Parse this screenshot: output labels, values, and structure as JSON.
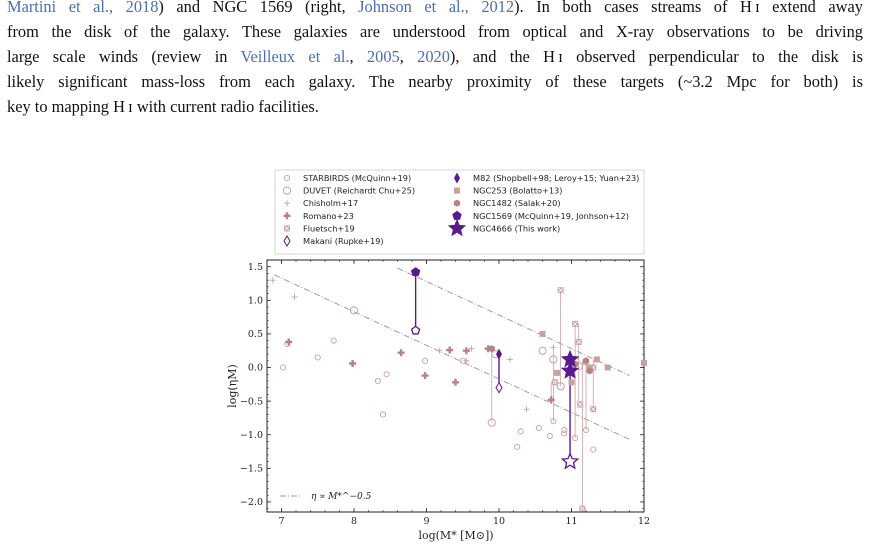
{
  "paragraph": {
    "line1": [
      {
        "t": "Martini et al., 2018",
        "cite": true
      },
      {
        "t": ") and NGC 1569 (right, ",
        "cite": false
      },
      {
        "t": "Johnson et al., 2012",
        "cite": true
      },
      {
        "t": "). In both cases streams of H ɪ extend away",
        "cite": false
      }
    ],
    "line2": [
      {
        "t": "from the disk of the galaxy. These galaxies are understood from optical and X-ray observations to be driving",
        "cite": false
      }
    ],
    "line3": [
      {
        "t": "large scale winds (review in ",
        "cite": false
      },
      {
        "t": "Veilleux et al.",
        "cite": true
      },
      {
        "t": ", ",
        "cite": false
      },
      {
        "t": "2005",
        "cite": true
      },
      {
        "t": ", ",
        "cite": false
      },
      {
        "t": "2020",
        "cite": true
      },
      {
        "t": "), and the H ɪ observed perpendicular to the disk is",
        "cite": false
      }
    ],
    "line4": [
      {
        "t": "likely significant mass-loss from each galaxy. The nearby proximity of these targets (~3.2 Mpc for both) is",
        "cite": false
      }
    ],
    "line5": [
      {
        "t": "key to mapping H ɪ with current radio facilities.",
        "cite": false
      }
    ]
  },
  "chart_data": {
    "type": "scatter",
    "xlabel": "log(M* [M⊙])",
    "ylabel": "log(ηM)",
    "xlim": [
      6.8,
      12.0
    ],
    "ylim": [
      -2.15,
      1.6
    ],
    "xticks": [
      7,
      8,
      9,
      10,
      11,
      12
    ],
    "yticks": [
      -2.0,
      -1.5,
      -1.0,
      -0.5,
      0.0,
      0.5,
      1.0,
      1.5
    ],
    "ytick_labels": [
      "−2.0",
      "−1.5",
      "−1.0",
      "−0.5",
      "0.0",
      "0.5",
      "1.0",
      "1.5"
    ],
    "grid": false,
    "legend_placement": "top, outside plot",
    "colors": {
      "literature": "#c9a0a0",
      "literature_dark": "#b58383",
      "highlight": "#5b1a8c",
      "line": "#999999"
    },
    "legend": [
      {
        "label": "STARBIRDS (McQuinn+19)",
        "marker": "circle-open-small"
      },
      {
        "label": "DUVET (Reichardt Chu+25)",
        "marker": "circle-open"
      },
      {
        "label": "Chisholm+17",
        "marker": "plus"
      },
      {
        "label": "Romano+23",
        "marker": "plus-filled"
      },
      {
        "label": "Fluetsch+19",
        "marker": "x-square"
      },
      {
        "label": "Makani (Rupke+19)",
        "marker": "diamond-open"
      },
      {
        "label": "M82 (Shopbell+98; Leroy+15; Yuan+23)",
        "marker": "thin-diamond"
      },
      {
        "label": "NGC253 (Bolatto+13)",
        "marker": "square"
      },
      {
        "label": "NGC1482 (Salak+20)",
        "marker": "hexagon"
      },
      {
        "label": "NGC1569 (McQuinn+19, Jonhson+12)",
        "marker": "pentagon"
      },
      {
        "label": "NGC4666 (This work)",
        "marker": "star"
      }
    ],
    "annotation": "η ∝ M*^−0.5",
    "trend_lines": [
      {
        "x": [
          6.9,
          11.8
        ],
        "y": [
          1.38,
          -1.07
        ]
      },
      {
        "x": [
          8.6,
          11.8
        ],
        "y": [
          1.48,
          -0.12
        ]
      }
    ],
    "series": [
      {
        "name": "STARBIRDS (McQuinn+19)",
        "marker": "circle-open-small",
        "points": [
          [
            7.02,
            0.0
          ],
          [
            7.08,
            0.35
          ],
          [
            7.5,
            0.15
          ],
          [
            7.72,
            0.4
          ],
          [
            8.33,
            -0.2
          ],
          [
            8.45,
            -0.1
          ],
          [
            8.4,
            -0.7
          ],
          [
            8.98,
            0.1
          ],
          [
            9.5,
            0.1
          ],
          [
            10.25,
            -1.18
          ],
          [
            10.3,
            -0.95
          ],
          [
            10.55,
            -0.9
          ],
          [
            10.7,
            -1.02
          ],
          [
            10.75,
            -0.8
          ],
          [
            10.9,
            -0.93
          ],
          [
            11.05,
            -1.05
          ],
          [
            11.2,
            -0.93
          ],
          [
            11.3,
            -1.22
          ],
          [
            10.9,
            -0.98
          ]
        ]
      },
      {
        "name": "DUVET (Reichardt Chu+25)",
        "marker": "circle-open",
        "points": [
          [
            8.0,
            0.85
          ],
          [
            9.9,
            -0.82
          ],
          [
            9.95,
            0.2
          ],
          [
            10.6,
            0.25
          ],
          [
            10.75,
            0.12
          ],
          [
            10.85,
            -0.28
          ],
          [
            11.05,
            0.1
          ],
          [
            11.1,
            0.02
          ]
        ]
      },
      {
        "name": "Chisholm+17",
        "marker": "plus",
        "points": [
          [
            6.88,
            1.3
          ],
          [
            7.18,
            1.05
          ],
          [
            9.18,
            0.25
          ],
          [
            9.55,
            0.1
          ],
          [
            9.62,
            0.28
          ],
          [
            10.15,
            0.12
          ],
          [
            10.38,
            -0.62
          ],
          [
            10.75,
            0.3
          ]
        ]
      },
      {
        "name": "Romano+23",
        "marker": "plus-filled",
        "points": [
          [
            7.1,
            0.38
          ],
          [
            7.98,
            0.06
          ],
          [
            8.65,
            0.22
          ],
          [
            8.98,
            -0.12
          ],
          [
            9.32,
            0.26
          ],
          [
            9.4,
            -0.22
          ],
          [
            9.55,
            0.25
          ],
          [
            9.85,
            0.28
          ],
          [
            10.72,
            -0.48
          ]
        ]
      },
      {
        "name": "Fluetsch+19",
        "marker": "x-square",
        "points": [
          [
            10.85,
            1.15
          ],
          [
            11.05,
            0.65
          ],
          [
            11.1,
            0.38
          ],
          [
            11.2,
            0.08
          ],
          [
            11.3,
            0.0
          ],
          [
            11.12,
            -0.55
          ],
          [
            10.77,
            -0.22
          ],
          [
            11.3,
            -0.62
          ],
          [
            11.15,
            -2.1
          ]
        ]
      },
      {
        "name": "Makani (Rupke+19)",
        "marker": "diamond-open",
        "points": [
          [
            10.0,
            -0.3
          ]
        ]
      },
      {
        "name": "M82 (Shopbell+98; Leroy+15; Yuan+23)",
        "marker": "thin-diamond",
        "points": [
          [
            10.0,
            0.2
          ]
        ]
      },
      {
        "name": "NGC253 (Bolatto+13)",
        "marker": "square",
        "points": [
          [
            10.6,
            0.5
          ],
          [
            11.0,
            -0.22
          ],
          [
            11.35,
            0.12
          ],
          [
            11.25,
            0.0
          ],
          [
            11.5,
            0.0
          ],
          [
            12.0,
            0.07
          ],
          [
            10.8,
            -0.08
          ]
        ]
      },
      {
        "name": "NGC1482 (Salak+20)",
        "marker": "hexagon",
        "points": [
          [
            9.9,
            0.28
          ],
          [
            11.05,
            0.05
          ],
          [
            11.2,
            0.1
          ],
          [
            11.25,
            -0.05
          ]
        ]
      },
      {
        "name": "NGC1569 (McQuinn+19, Jonhson+12)",
        "marker": "pentagon",
        "points": [
          [
            8.85,
            1.42
          ],
          [
            8.85,
            0.55
          ]
        ]
      },
      {
        "name": "NGC4666 (This work)",
        "marker": "star",
        "points": [
          [
            10.98,
            0.12
          ],
          [
            10.98,
            -0.05
          ],
          [
            10.98,
            -1.4
          ]
        ]
      }
    ],
    "connectors": [
      {
        "x": 8.85,
        "y": [
          0.55,
          1.42
        ],
        "color": "#5b1a8c"
      },
      {
        "x": 10.0,
        "y": [
          -0.3,
          0.2
        ],
        "color": "#5b1a8c"
      },
      {
        "x": 10.98,
        "y": [
          -1.4,
          0.12
        ],
        "color": "#5b1a8c"
      },
      {
        "x": 9.9,
        "y": [
          -0.82,
          0.28
        ],
        "color": "#c9a0a0"
      },
      {
        "x": 10.75,
        "y": [
          -0.8,
          0.3
        ],
        "color": "#c9a0a0"
      },
      {
        "x": 10.85,
        "y": [
          -0.28,
          1.15
        ],
        "color": "#c9a0a0"
      },
      {
        "x": 11.05,
        "y": [
          -1.05,
          0.65
        ],
        "color": "#c9a0a0"
      },
      {
        "x": 11.1,
        "y": [
          -0.55,
          0.65
        ],
        "color": "#c9a0a0"
      },
      {
        "x": 11.15,
        "y": [
          -2.1,
          0.1
        ],
        "color": "#c9a0a0"
      },
      {
        "x": 11.2,
        "y": [
          -0.93,
          0.1
        ],
        "color": "#c9a0a0"
      },
      {
        "x": 11.3,
        "y": [
          -0.62,
          0.12
        ],
        "color": "#c9a0a0"
      },
      {
        "x": 10.72,
        "y": [
          -0.48,
          -0.22
        ],
        "color": "#c9a0a0"
      }
    ]
  }
}
